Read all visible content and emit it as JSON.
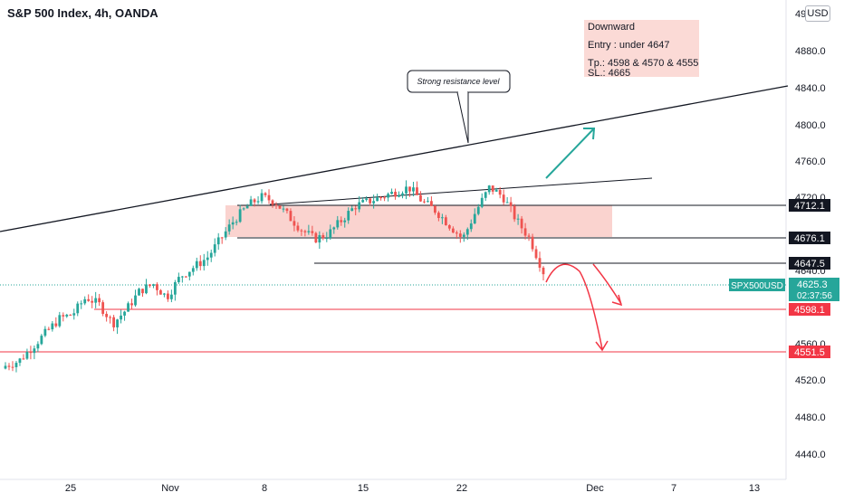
{
  "header": {
    "title": "S&P 500 Index, 4h, OANDA",
    "currency": "USD"
  },
  "info_box": {
    "direction": "Downward",
    "entry": "Entry : under 4647",
    "tp": "Tp.: 4598 & 4570 & 4555",
    "sl": "SL.: 4665"
  },
  "callout": {
    "text": "Strong resistance level"
  },
  "price_axis": {
    "ticks": [
      "4880.0",
      "4840.0",
      "4800.0",
      "4760.0",
      "4520.0",
      "4480.0",
      "4440.0"
    ],
    "partial_ticks": [
      "49",
      "4720.0",
      "4640.0",
      "4560.0"
    ]
  },
  "time_axis": {
    "ticks": [
      "25",
      "Nov",
      "8",
      "15",
      "22",
      "Dec",
      "7",
      "13"
    ]
  },
  "price_labels": [
    {
      "value": "4712.1",
      "color": "#131722",
      "text_color": "#ffffff",
      "name": "level-4712-label"
    },
    {
      "value": "4676.1",
      "color": "#131722",
      "text_color": "#ffffff",
      "name": "level-4676-label"
    },
    {
      "value": "4647.5",
      "color": "#131722",
      "text_color": "#ffffff",
      "name": "level-4647-label"
    },
    {
      "value": "4598.1",
      "color": "#f23645",
      "text_color": "#ffffff",
      "name": "level-4598-label"
    },
    {
      "value": "4551.5",
      "color": "#f23645",
      "text_color": "#ffffff",
      "name": "level-4551-label"
    }
  ],
  "symbol_tag": {
    "symbol": "SPX500USD",
    "price": "4625.3",
    "countdown": "02:37:56"
  },
  "colors": {
    "up": "#26a69a",
    "down": "#ef5350",
    "zone": "#f9cbc7",
    "info_box": "#fbdad6",
    "black_line": "#131722",
    "red_line": "#f23645",
    "teal_arrow": "#26a69a",
    "red_arrow": "#f23645"
  },
  "chart_data": {
    "type": "candlestick",
    "symbol": "S&P 500 Index",
    "interval": "4h",
    "source": "OANDA",
    "ylim": [
      4430,
      4900
    ],
    "last_price": 4625.3,
    "horizontal_levels": [
      4712.1,
      4676.1,
      4647.5,
      4598.1,
      4551.5
    ],
    "resistance_zone": [
      4676,
      4712
    ],
    "candle_closes_approx": [
      4525,
      4530,
      4545,
      4560,
      4575,
      4580,
      4598,
      4590,
      4570,
      4585,
      4605,
      4612,
      4598,
      4620,
      4630,
      4640,
      4660,
      4680,
      4695,
      4705,
      4700,
      4685,
      4670,
      4660,
      4665,
      4680,
      4695,
      4700,
      4705,
      4710,
      4715,
      4700,
      4690,
      4675,
      4660,
      4690,
      4715,
      4705,
      4680,
      4660,
      4625
    ],
    "projections": {
      "bullish": "break above resistance toward 4800",
      "bearish": "decline to 4598 and 4551"
    }
  }
}
